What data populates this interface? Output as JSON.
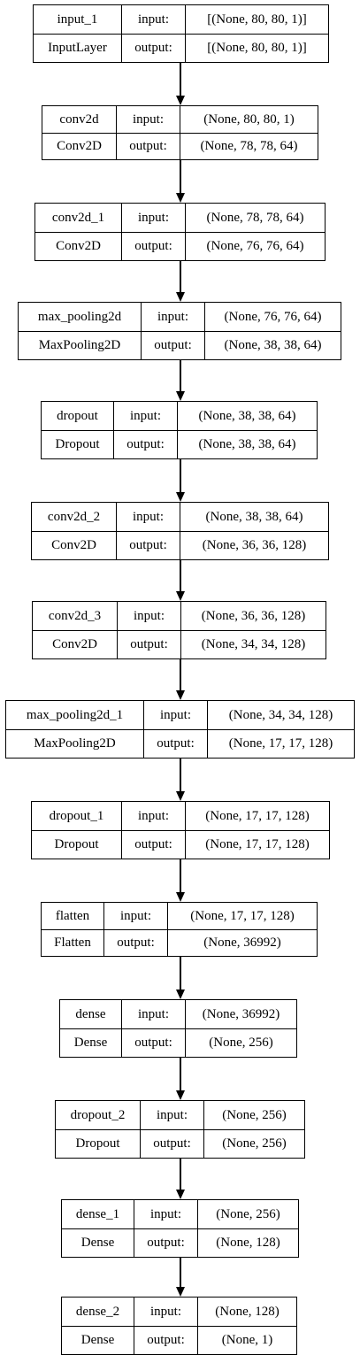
{
  "input_label": "input:",
  "output_label": "output:",
  "layers": [
    {
      "name": "input_1",
      "type": "InputLayer",
      "input": "[(None, 80, 80, 1)]",
      "output": "[(None, 80, 80, 1)]"
    },
    {
      "name": "conv2d",
      "type": "Conv2D",
      "input": "(None, 80, 80, 1)",
      "output": "(None, 78, 78, 64)"
    },
    {
      "name": "conv2d_1",
      "type": "Conv2D",
      "input": "(None, 78, 78, 64)",
      "output": "(None, 76, 76, 64)"
    },
    {
      "name": "max_pooling2d",
      "type": "MaxPooling2D",
      "input": "(None, 76, 76, 64)",
      "output": "(None, 38, 38, 64)"
    },
    {
      "name": "dropout",
      "type": "Dropout",
      "input": "(None, 38, 38, 64)",
      "output": "(None, 38, 38, 64)"
    },
    {
      "name": "conv2d_2",
      "type": "Conv2D",
      "input": "(None, 38, 38, 64)",
      "output": "(None, 36, 36, 128)"
    },
    {
      "name": "conv2d_3",
      "type": "Conv2D",
      "input": "(None, 36, 36, 128)",
      "output": "(None, 34, 34, 128)"
    },
    {
      "name": "max_pooling2d_1",
      "type": "MaxPooling2D",
      "input": "(None, 34, 34, 128)",
      "output": "(None, 17, 17, 128)"
    },
    {
      "name": "dropout_1",
      "type": "Dropout",
      "input": "(None, 17, 17, 128)",
      "output": "(None, 17, 17, 128)"
    },
    {
      "name": "flatten",
      "type": "Flatten",
      "input": "(None, 17, 17, 128)",
      "output": "(None, 36992)"
    },
    {
      "name": "dense",
      "type": "Dense",
      "input": "(None, 36992)",
      "output": "(None, 256)"
    },
    {
      "name": "dropout_2",
      "type": "Dropout",
      "input": "(None, 256)",
      "output": "(None, 256)"
    },
    {
      "name": "dense_1",
      "type": "Dense",
      "input": "(None, 256)",
      "output": "(None, 128)"
    },
    {
      "name": "dense_2",
      "type": "Dense",
      "input": "(None, 128)",
      "output": "(None, 1)"
    }
  ]
}
